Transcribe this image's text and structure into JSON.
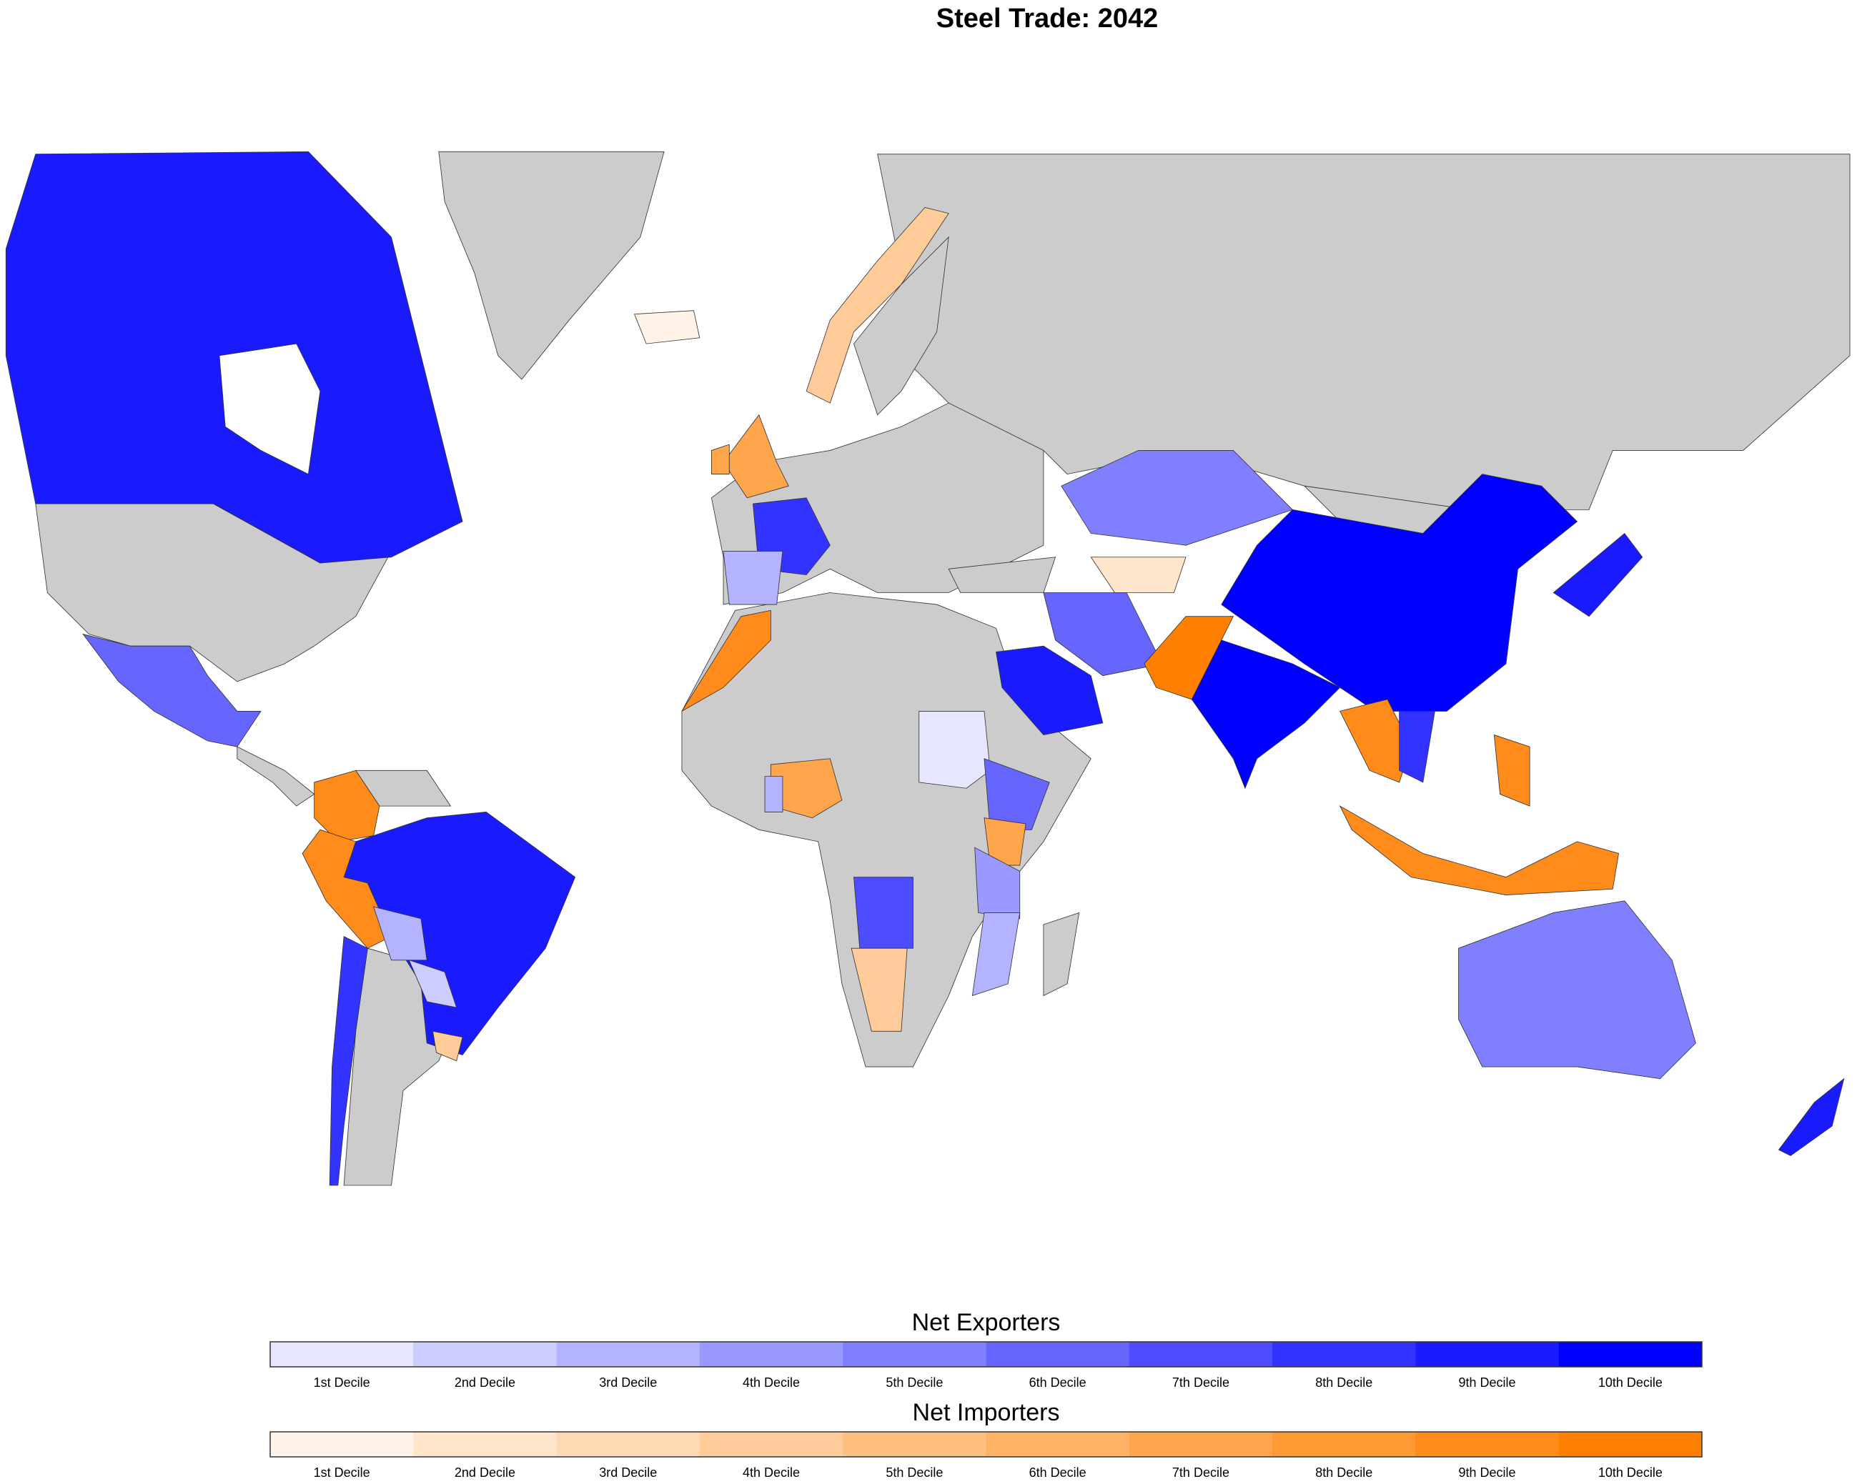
{
  "chart_data": {
    "type": "choropleth",
    "title": "Steel Trade: 2042",
    "legends": [
      {
        "title": "Net Exporters",
        "labels": [
          "1st Decile",
          "2nd Decile",
          "3rd Decile",
          "4th Decile",
          "5th Decile",
          "6th Decile",
          "7th Decile",
          "8th Decile",
          "9th Decile",
          "10th Decile"
        ],
        "colors": [
          "#e6e6ff",
          "#ccccff",
          "#b3b3ff",
          "#9999ff",
          "#8080ff",
          "#6666ff",
          "#4d4dff",
          "#3333ff",
          "#1a1aff",
          "#0000ff"
        ]
      },
      {
        "title": "Net Importers",
        "labels": [
          "1st Decile",
          "2nd Decile",
          "3rd Decile",
          "4th Decile",
          "5th Decile",
          "6th Decile",
          "7th Decile",
          "8th Decile",
          "9th Decile",
          "10th Decile"
        ],
        "colors": [
          "#fff2e6",
          "#ffe5cc",
          "#ffd9b3",
          "#ffcc99",
          "#ffbf80",
          "#ffb266",
          "#ffa64d",
          "#ff9933",
          "#ff8c1a",
          "#ff8000"
        ]
      }
    ]
  }
}
